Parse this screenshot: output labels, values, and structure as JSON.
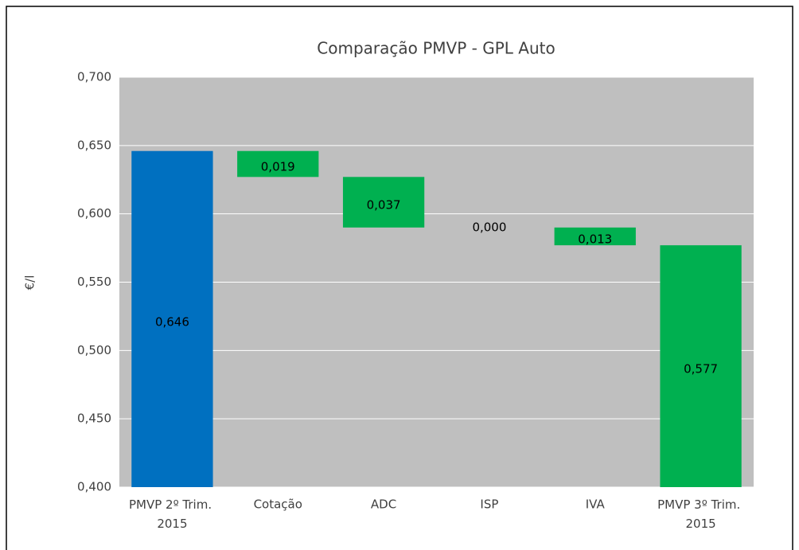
{
  "chart_data": {
    "type": "waterfall",
    "title": "Comparação PMVP - GPL Auto",
    "y_label": "€/l",
    "categories": [
      "PMVP 2º Trim. 2015",
      "Cotação",
      "ADC",
      "ISP",
      "IVA",
      "PMVP 3º Trim. 2015"
    ],
    "values": [
      0.646,
      -0.019,
      -0.037,
      0,
      -0.013,
      0.577
    ],
    "value_labels": [
      "0,646",
      "0,019",
      "0,037",
      "0,000",
      "0,013",
      "0,577"
    ],
    "totals": [
      true,
      false,
      false,
      false,
      false,
      true
    ],
    "colors": [
      "#0070c0",
      "#00b050",
      "#00b050",
      "#00b050",
      "#00b050",
      "#00b050"
    ],
    "ylim": [
      0.4,
      0.7
    ],
    "yticks": [
      {
        "value": 0.4,
        "label": "0,400"
      },
      {
        "value": 0.45,
        "label": "0,450"
      },
      {
        "value": 0.5,
        "label": "0,500"
      },
      {
        "value": 0.55,
        "label": "0,550"
      },
      {
        "value": 0.6,
        "label": "0,600"
      },
      {
        "value": 0.65,
        "label": "0,650"
      },
      {
        "value": 0.7,
        "label": "0,700"
      }
    ],
    "grid": true
  }
}
